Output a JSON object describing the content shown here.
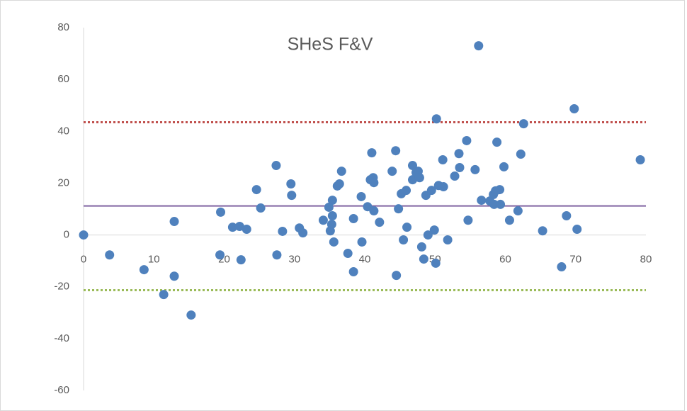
{
  "chart_data": {
    "type": "scatter",
    "title": "SHeS F&V",
    "x": [
      0,
      3.7,
      8.6,
      11.4,
      12.9,
      12.9,
      15.3,
      19.4,
      19.5,
      21.2,
      22.2,
      22.4,
      23.2,
      24.6,
      25.2,
      27.4,
      27.5,
      28.3,
      29.5,
      29.6,
      30.7,
      31.2,
      34.1,
      34.9,
      35.1,
      35.3,
      35.4,
      35.4,
      35.6,
      36.1,
      36.4,
      36.7,
      37.6,
      38.4,
      38.4,
      39.5,
      39.6,
      40.4,
      40.8,
      41,
      41.2,
      41.3,
      41.3,
      42.1,
      43.9,
      44.4,
      44.5,
      44.8,
      45.2,
      45.5,
      45.9,
      46,
      46.8,
      46.8,
      47.3,
      47.6,
      47.8,
      48.1,
      48.4,
      48.7,
      49,
      49.5,
      49.9,
      50.1,
      50.2,
      50.5,
      51.1,
      51.2,
      51.8,
      52.8,
      53.4,
      53.5,
      54.5,
      54.7,
      55.7,
      56.2,
      56.6,
      57.8,
      58.3,
      58.4,
      58.6,
      58.8,
      59.2,
      59.3,
      59.8,
      60.6,
      61.8,
      62.2,
      62.6,
      65.3,
      68,
      68.7,
      69.8,
      70.2,
      79.2
    ],
    "values": [
      0,
      -7.7,
      -13.4,
      -23,
      5.2,
      -15.9,
      -30.9,
      -7.7,
      8.8,
      3,
      3.3,
      -9.6,
      2.2,
      17.5,
      10.4,
      26.8,
      -7.7,
      1.4,
      19.7,
      15.3,
      2.7,
      0.8,
      5.7,
      10.7,
      1.6,
      4.1,
      13.4,
      7.4,
      -2.7,
      18.9,
      19.7,
      24.6,
      -7.1,
      6.3,
      -14.2,
      14.8,
      -2.7,
      10.9,
      21.3,
      31.7,
      22.1,
      20.2,
      9.3,
      4.9,
      24.6,
      32.5,
      -15.6,
      10.1,
      15.9,
      -1.9,
      17.2,
      3,
      26.8,
      21.3,
      24.1,
      24.6,
      22.1,
      -4.6,
      -9.3,
      15.3,
      0,
      17.2,
      1.9,
      -10.9,
      44.8,
      19.1,
      29,
      18.6,
      -1.9,
      22.7,
      31.4,
      26,
      36.4,
      5.7,
      25.2,
      73,
      13.4,
      13.1,
      15.6,
      11.8,
      17,
      35.8,
      17.5,
      11.8,
      26.3,
      5.7,
      9.3,
      31.2,
      42.9,
      1.6,
      -12.3,
      7.4,
      48.7,
      2.2,
      29
    ],
    "color": "#4f81bd",
    "hlines": [
      {
        "value": 43.5,
        "color": "#c0504d",
        "style": "dotted"
      },
      {
        "value": 11.2,
        "color": "#8064a2",
        "style": "solid"
      },
      {
        "value": -21.3,
        "color": "#9bbb59",
        "style": "dotted"
      }
    ],
    "xlim": [
      0,
      80
    ],
    "xticks": [
      0,
      10,
      20,
      30,
      40,
      50,
      60,
      70,
      80
    ],
    "ylim": [
      -60,
      80
    ],
    "yticks": [
      -60,
      -40,
      -20,
      0,
      20,
      40,
      60,
      80
    ]
  }
}
